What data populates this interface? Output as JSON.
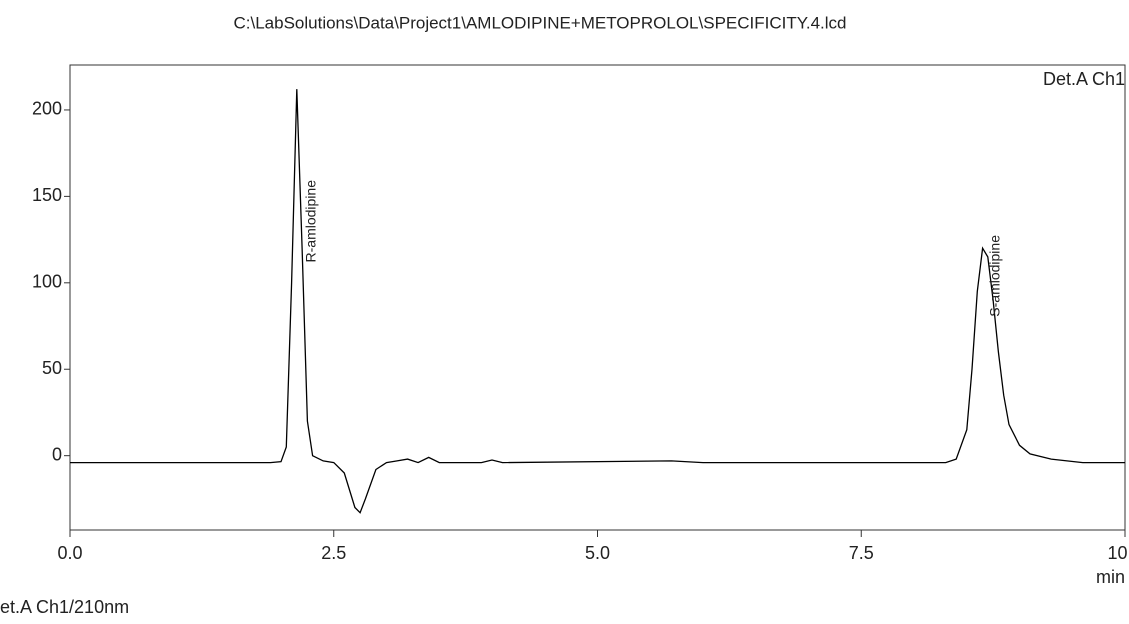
{
  "chart_data": {
    "type": "line",
    "title": "C:\\LabSolutions\\Data\\Project1\\AMLODIPINE+METOPROLOL\\SPECIFICITY.4.lcd",
    "channel_label": "Det.A Ch1",
    "detector_label": "et.A Ch1/210nm",
    "x_label": "min",
    "annotations": [
      "R-amlodipine",
      "S-amlodipine"
    ],
    "xlim": [
      0,
      10
    ],
    "xticks": [
      {
        "value": 0,
        "label": "0.0"
      },
      2.5,
      {
        "value": 5,
        "label": "5.0"
      },
      7.5,
      {
        "value": 10,
        "label": "10.0"
      }
    ],
    "ylim": [
      -43,
      226
    ],
    "yticks": [
      0,
      50,
      100,
      150,
      200
    ],
    "series": [
      {
        "color": "#000000",
        "x": [
          0,
          1,
          1.9,
          2,
          2.05,
          2.1,
          2.15,
          2.2,
          2.25,
          2.3,
          2.4,
          2.5,
          2.6,
          2.7,
          2.75,
          2.8,
          2.9,
          3,
          3.1,
          3.2,
          3.3,
          3.4,
          3.5,
          3.9,
          4,
          4.1,
          5.7,
          6,
          8,
          8.3,
          8.4,
          8.5,
          8.55,
          8.6,
          8.65,
          8.7,
          8.75,
          8.8,
          8.85,
          8.9,
          9,
          9.1,
          9.3,
          9.6,
          10
        ],
        "values": [
          -4,
          -4,
          -4,
          -3.5,
          5,
          100,
          212,
          120,
          20,
          0,
          -3,
          -4,
          -10,
          -30,
          -33,
          -25,
          -8,
          -4,
          -3,
          -2,
          -4,
          -1,
          -4,
          -4,
          -2.5,
          -4,
          -3,
          -4,
          -4,
          -4,
          -2,
          15,
          50,
          95,
          120,
          115,
          90,
          60,
          35,
          18,
          6,
          1,
          -2,
          -4,
          -4
        ]
      }
    ]
  }
}
